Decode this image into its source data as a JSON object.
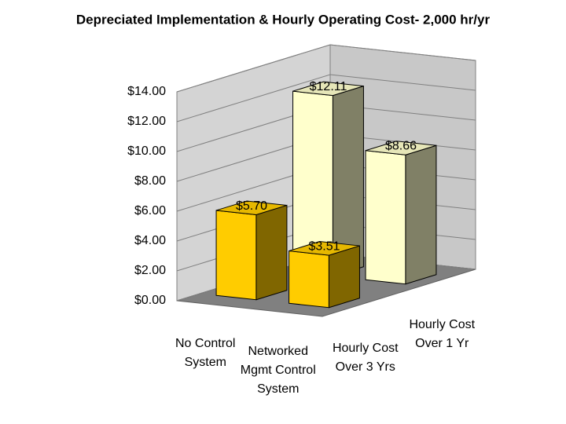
{
  "chart_data": {
    "type": "bar3d",
    "title": "Depreciated Implementation & Hourly Operating Cost- 2,000 hr/yr",
    "categories": [
      "No Control System",
      "Networked Mgmt Control System"
    ],
    "series": [
      {
        "name": "Hourly Cost Over 3 Yrs",
        "color": "#ffcc00",
        "values": [
          5.7,
          3.51
        ],
        "value_labels": [
          "$5.70",
          "$3.51"
        ]
      },
      {
        "name": "Hourly Cost Over 1 Yr",
        "color": "#ffffcc",
        "values": [
          12.11,
          8.66
        ],
        "value_labels": [
          "$12.11",
          "$8.66"
        ]
      }
    ],
    "ylim": [
      0,
      14
    ],
    "yticks": [
      {
        "value": 0,
        "label": "$0.00"
      },
      {
        "value": 2,
        "label": "$2.00"
      },
      {
        "value": 4,
        "label": "$4.00"
      },
      {
        "value": 6,
        "label": "$6.00"
      },
      {
        "value": 8,
        "label": "$8.00"
      },
      {
        "value": 10,
        "label": "$10.00"
      },
      {
        "value": 12,
        "label": "$12.00"
      },
      {
        "value": 14,
        "label": "$14.00"
      }
    ],
    "grid": true
  }
}
